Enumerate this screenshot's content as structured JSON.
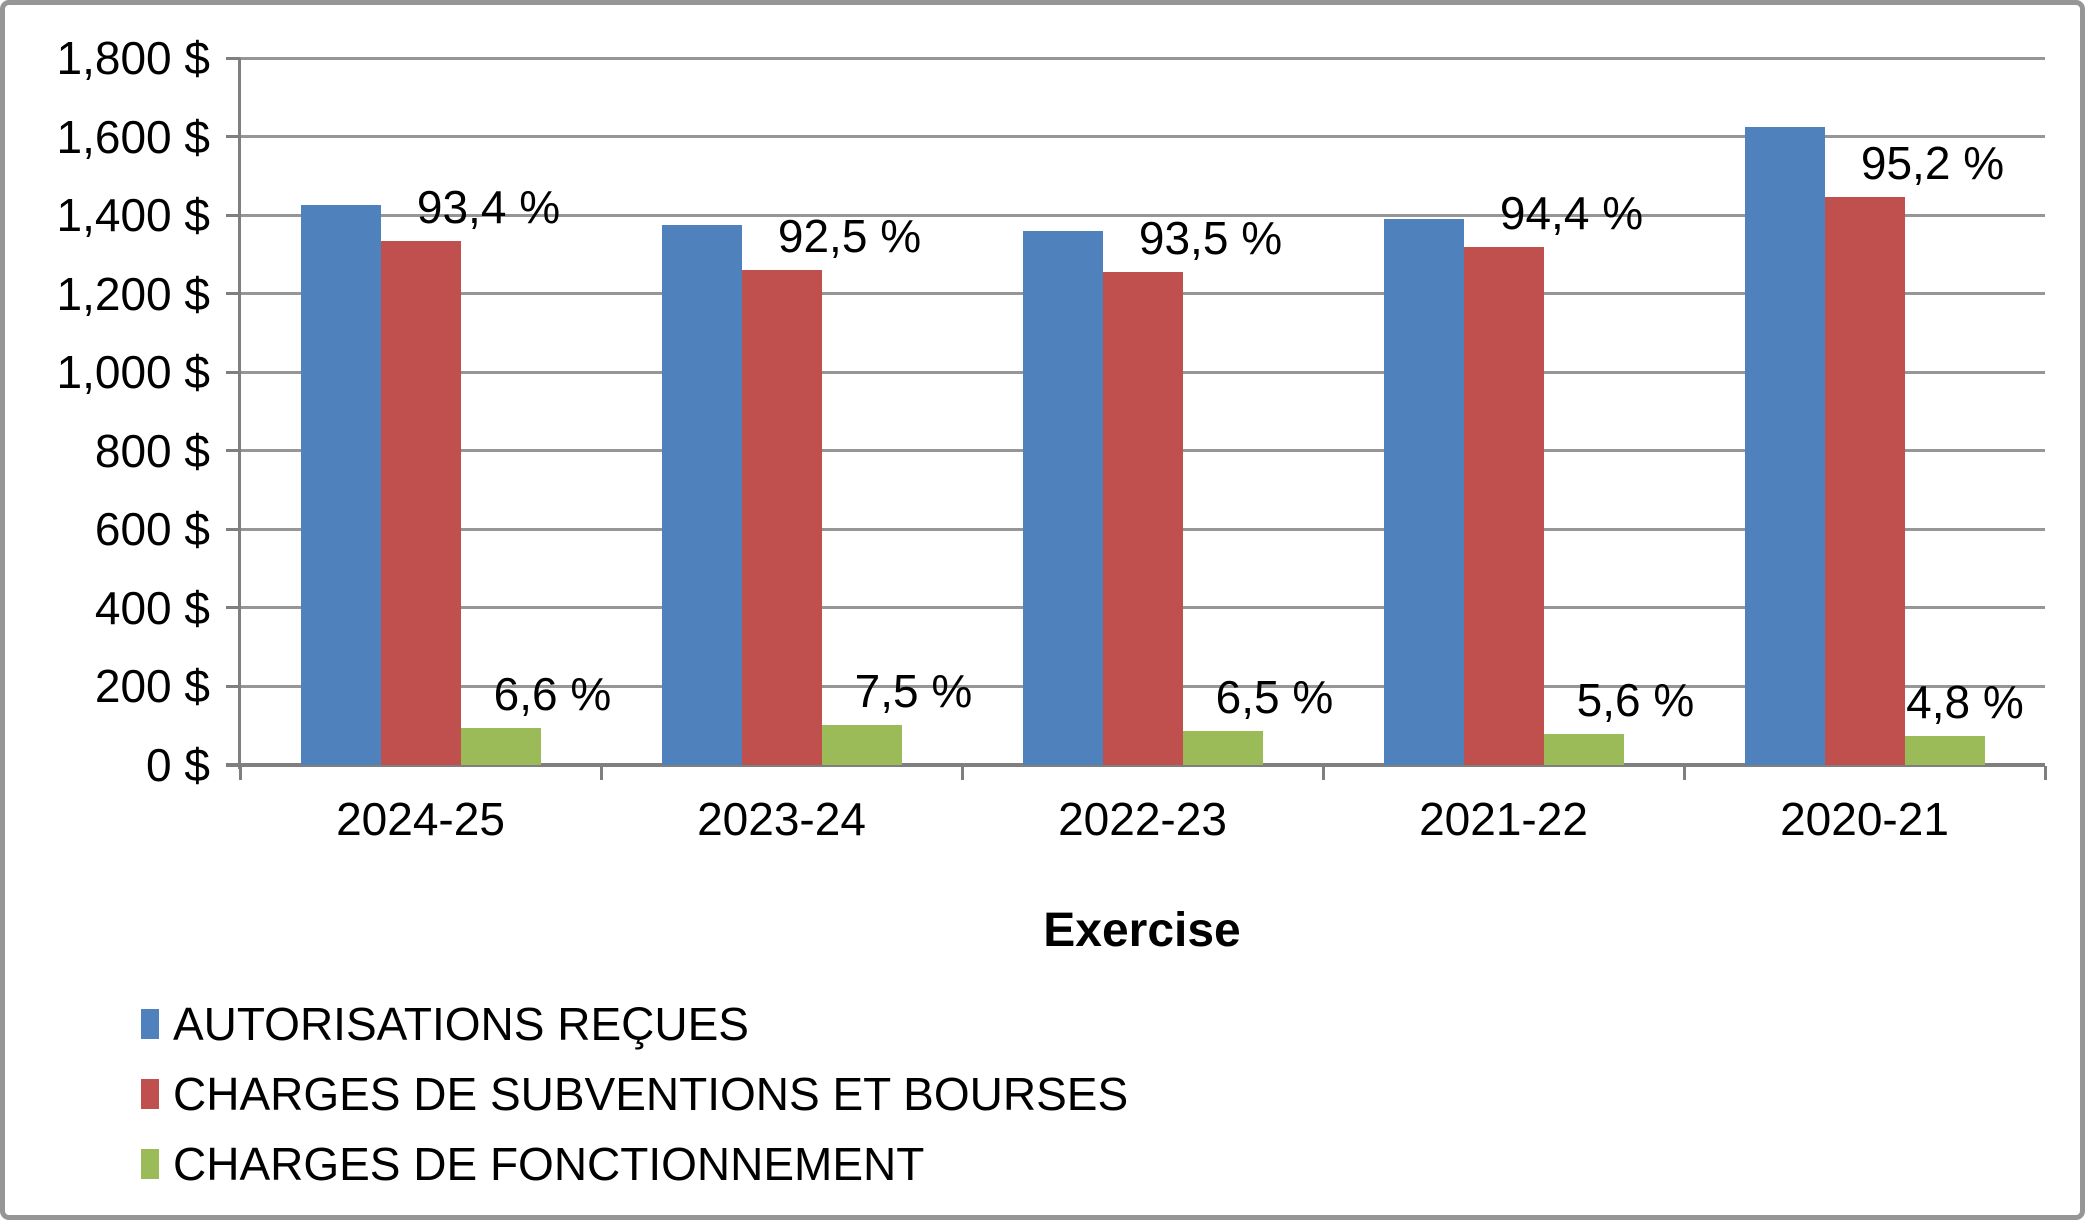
{
  "chart_data": {
    "type": "bar",
    "title": "",
    "xlabel": "Exercise",
    "ylabel": "",
    "categories": [
      "2024-25",
      "2023-24",
      "2022-23",
      "2021-22",
      "2020-21"
    ],
    "series": [
      {
        "name": "AUTORISATIONS REÇUES",
        "color": "#4F81BD",
        "values": [
          1425,
          1375,
          1360,
          1390,
          1625
        ],
        "data_labels": [
          "",
          "",
          "",
          "",
          ""
        ]
      },
      {
        "name": "CHARGES DE SUBVENTIONS ET BOURSES",
        "color": "#C0504D",
        "values": [
          1335,
          1260,
          1255,
          1320,
          1445
        ],
        "data_labels": [
          "93,4 %",
          "92,5 %",
          "93,5 %",
          "94,4 %",
          "95,2 %"
        ]
      },
      {
        "name": "CHARGES DE FONCTIONNEMENT",
        "color": "#9BBB59",
        "values": [
          94,
          102,
          87,
          78,
          73
        ],
        "data_labels": [
          "6,6 %",
          "7,5 %",
          "6,5 %",
          "5,6 %",
          "4,8 %"
        ]
      }
    ],
    "y_axis": {
      "min": 0,
      "max": 1800,
      "step": 200,
      "unit": "$",
      "tick_labels": [
        "0 $",
        "200 $",
        "400 $",
        "600 $",
        "800 $",
        "1,000 $",
        "1,200 $",
        "1,400 $",
        "1,600 $",
        "1,800 $"
      ]
    },
    "grid": true,
    "legend_position": "bottom-left"
  },
  "frame": {
    "border_color": "#969696",
    "gridline_color": "#969696",
    "axis_color": "#7F7F7F",
    "background": "#FFFFFF"
  }
}
